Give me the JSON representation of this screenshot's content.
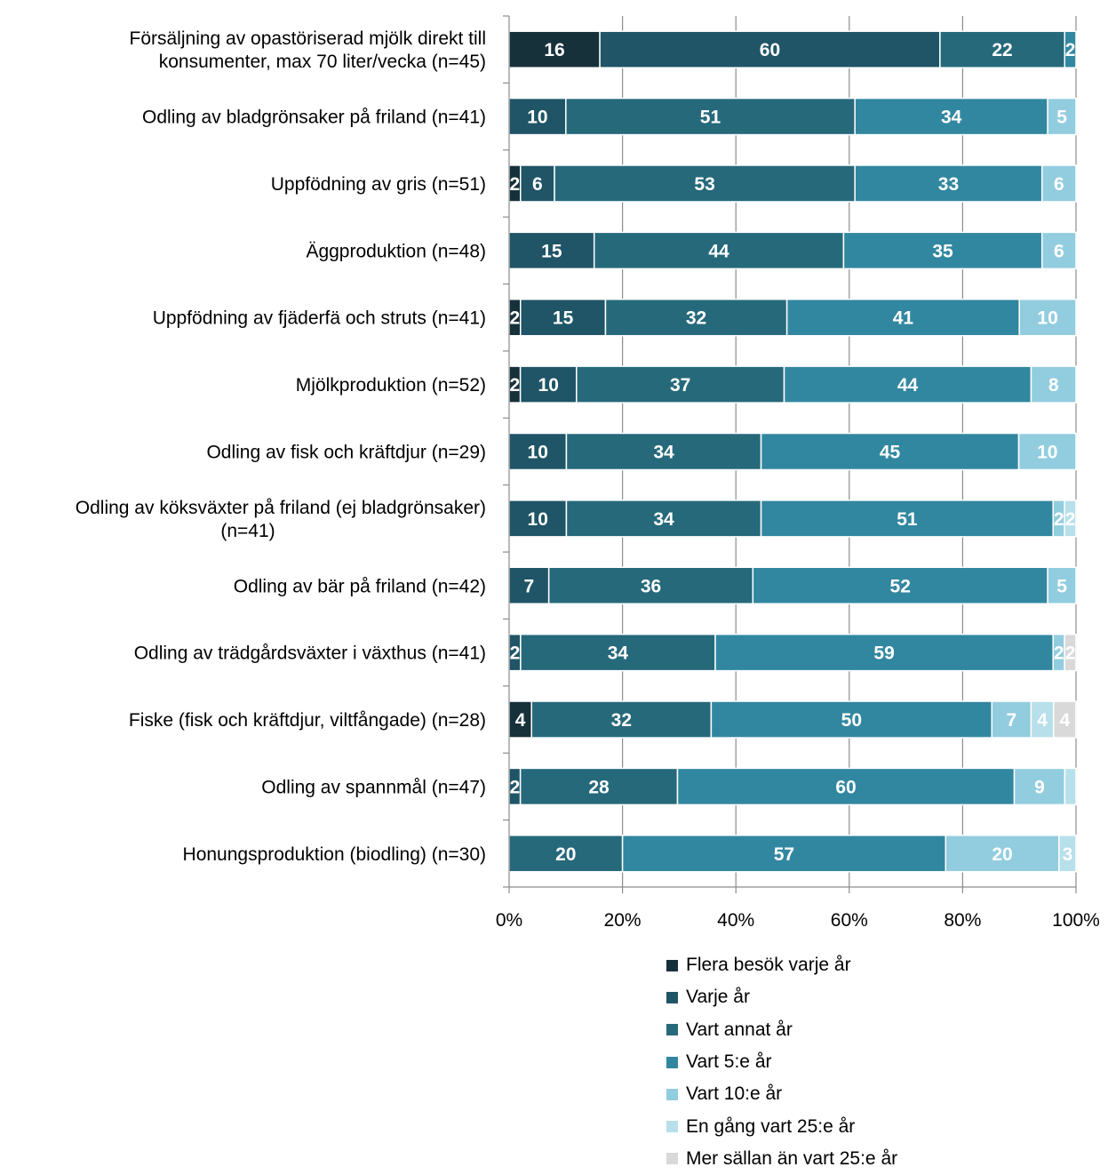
{
  "chart_data": {
    "type": "bar",
    "orientation": "horizontal",
    "stacked": "percent",
    "categories": [
      [
        "Försäljning av opastöriserad mjölk direkt till",
        "konsumenter, max 70 liter/vecka (n=45)"
      ],
      [
        "Odling av bladgrönsaker på friland (n=41)"
      ],
      [
        "Uppfödning av gris (n=51)"
      ],
      [
        "Äggproduktion (n=48)"
      ],
      [
        "Uppfödning av fjäderfä och struts (n=41)"
      ],
      [
        "Mjölkproduktion (n=52)"
      ],
      [
        "Odling av fisk och kräftdjur (n=29)"
      ],
      [
        "Odling av köksväxter på friland (ej bladgrönsaker)",
        "(n=41)"
      ],
      [
        "Odling av bär på friland (n=42)"
      ],
      [
        "Odling av trädgårdsväxter i växthus (n=41)"
      ],
      [
        "Fiske (fisk och kräftdjur, viltfångade) (n=28)"
      ],
      [
        "Odling av spannmål (n=47)"
      ],
      [
        "Honungsproduktion (biodling) (n=30)"
      ]
    ],
    "series": [
      {
        "name": "Flera besök varje år",
        "color": "#17313b",
        "values": [
          16,
          0,
          2,
          0,
          2,
          2,
          0,
          0,
          0,
          0,
          4,
          0,
          0
        ]
      },
      {
        "name": "Varje år",
        "color": "#1f5566",
        "values": [
          60,
          10,
          6,
          15,
          15,
          10,
          10,
          10,
          7,
          2,
          0,
          2,
          0
        ]
      },
      {
        "name": "Vart annat år",
        "color": "#26697b",
        "values": [
          22,
          51,
          53,
          44,
          32,
          37,
          34,
          34,
          36,
          34,
          32,
          28,
          20
        ]
      },
      {
        "name": "Vart 5:e år",
        "color": "#3287a0",
        "values": [
          2,
          34,
          33,
          35,
          41,
          44,
          45,
          51,
          52,
          59,
          50,
          60,
          57
        ]
      },
      {
        "name": "Vart 10:e år",
        "color": "#92cddf",
        "values": [
          0,
          5,
          6,
          6,
          10,
          8,
          10,
          2,
          5,
          2,
          7,
          9,
          20
        ]
      },
      {
        "name": "En gång vart 25:e år",
        "color": "#b7e0ea",
        "values": [
          0,
          0,
          0,
          0,
          0,
          0,
          0,
          2,
          0,
          0,
          4,
          2,
          3
        ]
      },
      {
        "name": "Mer sällan än vart 25:e år",
        "color": "#d9d9d9",
        "values": [
          0,
          0,
          0,
          0,
          0,
          0,
          0,
          0,
          0,
          2,
          4,
          0,
          0
        ]
      }
    ],
    "segment_labels": [
      [
        "16",
        "60",
        "22",
        "2",
        "",
        "",
        ""
      ],
      [
        "",
        "10",
        "51",
        "34",
        "5",
        "",
        ""
      ],
      [
        "2",
        "6",
        "53",
        "33",
        "6",
        "",
        ""
      ],
      [
        "",
        "15",
        "44",
        "35",
        "6",
        "",
        ""
      ],
      [
        "2",
        "15",
        "32",
        "41",
        "10",
        "",
        ""
      ],
      [
        "2",
        "10",
        "37",
        "44",
        "8",
        "",
        ""
      ],
      [
        "",
        "10",
        "34",
        "45",
        "10",
        "",
        ""
      ],
      [
        "",
        "10",
        "34",
        "51",
        "2",
        "2",
        ""
      ],
      [
        "",
        "7",
        "36",
        "52",
        "5",
        "",
        ""
      ],
      [
        "",
        "2",
        "34",
        "59",
        "2",
        "",
        "2"
      ],
      [
        "4",
        "",
        "32",
        "50",
        "7",
        "4",
        "4"
      ],
      [
        "",
        "2",
        "28",
        "60",
        "9",
        "",
        ""
      ],
      [
        "",
        "",
        "20",
        "57",
        "20",
        "3",
        ""
      ]
    ],
    "x_ticks": [
      "0%",
      "20%",
      "40%",
      "60%",
      "80%",
      "100%"
    ],
    "xlim": [
      0,
      100
    ],
    "grid": true,
    "legend_position": "bottom"
  }
}
